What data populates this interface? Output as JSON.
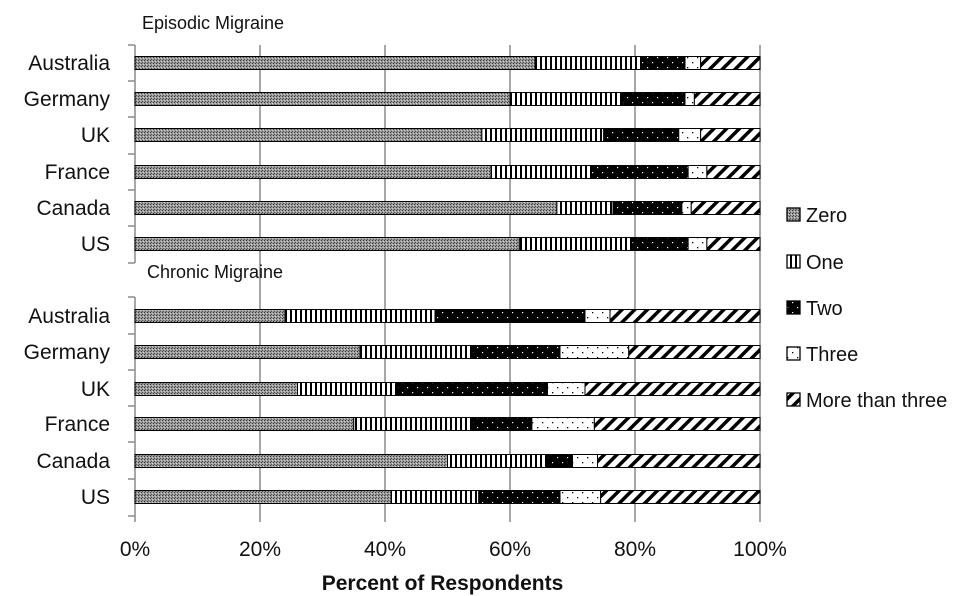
{
  "chart_data": {
    "type": "bar",
    "orientation": "horizontal",
    "stacked": "100%",
    "xlabel": "Percent of Respondents",
    "xlim": [
      0,
      100
    ],
    "x_ticks": [
      "0%",
      "20%",
      "40%",
      "60%",
      "80%",
      "100%"
    ],
    "grid": "vertical gridlines",
    "legend_position": "right",
    "series_names": [
      "Zero",
      "One",
      "Two",
      "Three",
      "More than three"
    ],
    "groups": [
      {
        "title": "Episodic Migraine",
        "categories": [
          "Australia",
          "Germany",
          "UK",
          "France",
          "Canada",
          "US"
        ],
        "series": [
          {
            "name": "Zero",
            "values": [
              64,
              60,
              55.5,
              57,
              67.5,
              61.5
            ]
          },
          {
            "name": "One",
            "values": [
              17,
              18,
              19.5,
              16,
              9,
              18
            ]
          },
          {
            "name": "Two",
            "values": [
              7,
              10,
              12,
              15.5,
              11,
              9
            ]
          },
          {
            "name": "Three",
            "values": [
              2.5,
              1.5,
              3.5,
              3,
              1.5,
              3
            ]
          },
          {
            "name": "More than three",
            "values": [
              9.5,
              10.5,
              9.5,
              8.5,
              11,
              8.5
            ]
          }
        ]
      },
      {
        "title": "Chronic Migraine",
        "categories": [
          "Australia",
          "Germany",
          "UK",
          "France",
          "Canada",
          "US"
        ],
        "series": [
          {
            "name": "Zero",
            "values": [
              24,
              36,
              26,
              35,
              50,
              41
            ]
          },
          {
            "name": "One",
            "values": [
              24,
              18,
              16,
              19,
              16,
              14
            ]
          },
          {
            "name": "Two",
            "values": [
              24,
              14,
              24,
              9.5,
              4,
              13
            ]
          },
          {
            "name": "Three",
            "values": [
              4,
              11,
              6,
              10,
              4,
              6.5
            ]
          },
          {
            "name": "More than three",
            "values": [
              24,
              21,
              28,
              26.5,
              26,
              25.5
            ]
          }
        ]
      }
    ]
  }
}
